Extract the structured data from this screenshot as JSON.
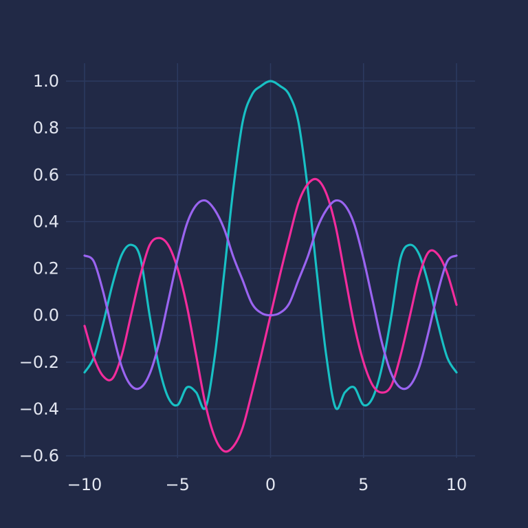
{
  "chart_data": {
    "type": "line",
    "title": "",
    "xlabel": "",
    "ylabel": "",
    "xlim": [
      -10,
      10
    ],
    "ylim": [
      -0.65,
      1.05
    ],
    "grid": true,
    "legend": "none",
    "background": "#212946",
    "grid_color": "#2c3a60",
    "tick_color": "#e3e6f0",
    "x_ticks": [
      {
        "value": -10,
        "label": "−10"
      },
      {
        "value": -5,
        "label": "−5"
      },
      {
        "value": 0,
        "label": "0"
      },
      {
        "value": 5,
        "label": "5"
      },
      {
        "value": 10,
        "label": "10"
      }
    ],
    "y_ticks": [
      {
        "value": 1.0,
        "label": "1.0"
      },
      {
        "value": 0.8,
        "label": "0.8"
      },
      {
        "value": 0.6,
        "label": "0.6"
      },
      {
        "value": 0.4,
        "label": "0.4"
      },
      {
        "value": 0.2,
        "label": "0.2"
      },
      {
        "value": 0.0,
        "label": "0.0"
      },
      {
        "value": -0.2,
        "label": "−0.2"
      },
      {
        "value": -0.4,
        "label": "−0.4"
      },
      {
        "value": -0.6,
        "label": "−0.6"
      }
    ],
    "series": [
      {
        "color": "#18c0c4",
        "x": [
          -10,
          -9.5,
          -9,
          -8.5,
          -8,
          -7.5,
          -7,
          -6.5,
          -6,
          -5.5,
          -5,
          -4.5,
          -4,
          -3.5,
          -3,
          -2.5,
          -2,
          -1.5,
          -1,
          -0.5,
          0,
          0.5,
          1,
          1.5,
          2,
          2.5,
          3,
          3.5,
          4,
          4.5,
          5,
          5.5,
          6,
          6.5,
          7,
          7.5,
          8,
          8.5,
          9,
          9.5,
          10
        ],
        "y": [
          -0.244,
          -0.18,
          -0.035,
          0.132,
          0.259,
          0.301,
          0.246,
          -0.001,
          -0.218,
          -0.351,
          -0.383,
          -0.308,
          -0.329,
          -0.395,
          -0.175,
          0.176,
          0.542,
          0.825,
          0.942,
          0.98,
          1.0,
          0.98,
          0.942,
          0.825,
          0.542,
          0.176,
          -0.175,
          -0.395,
          -0.329,
          -0.308,
          -0.383,
          -0.351,
          -0.218,
          -0.001,
          0.246,
          0.301,
          0.259,
          0.132,
          -0.035,
          -0.18,
          -0.244
        ]
      },
      {
        "color": "#f22c9c",
        "x": [
          -10,
          -9.5,
          -9,
          -8.5,
          -8,
          -7.5,
          -7,
          -6.5,
          -6,
          -5.5,
          -5,
          -4.5,
          -4,
          -3.5,
          -3,
          -2.5,
          -2,
          -1.5,
          -1,
          -0.5,
          0,
          0.5,
          1,
          1.5,
          2,
          2.5,
          3,
          3.5,
          4,
          4.5,
          5,
          5.5,
          6,
          6.5,
          7,
          7.5,
          8,
          8.5,
          9,
          9.5,
          10
        ],
        "y": [
          -0.045,
          -0.18,
          -0.26,
          -0.27,
          -0.17,
          0.0,
          0.17,
          0.3,
          0.33,
          0.3,
          0.2,
          0.04,
          -0.17,
          -0.38,
          -0.52,
          -0.58,
          -0.56,
          -0.48,
          -0.33,
          -0.17,
          0.0,
          0.17,
          0.33,
          0.48,
          0.56,
          0.58,
          0.52,
          0.38,
          0.17,
          -0.04,
          -0.2,
          -0.3,
          -0.33,
          -0.3,
          -0.17,
          0.0,
          0.17,
          0.27,
          0.26,
          0.18,
          0.045
        ]
      },
      {
        "color": "#9a64f0",
        "x": [
          -10,
          -9.5,
          -9,
          -8.5,
          -8,
          -7.5,
          -7,
          -6.5,
          -6,
          -5.5,
          -5,
          -4.5,
          -4,
          -3.5,
          -3,
          -2.5,
          -2,
          -1.5,
          -1,
          -0.5,
          0,
          0.5,
          1,
          1.5,
          2,
          2.5,
          3,
          3.5,
          4,
          4.5,
          5,
          5.5,
          6,
          6.5,
          7,
          7.5,
          8,
          8.5,
          9,
          9.5,
          10
        ],
        "y": [
          0.255,
          0.23,
          0.1,
          -0.07,
          -0.22,
          -0.3,
          -0.31,
          -0.25,
          -0.12,
          0.06,
          0.24,
          0.39,
          0.47,
          0.49,
          0.45,
          0.37,
          0.25,
          0.15,
          0.05,
          0.01,
          0.0,
          0.01,
          0.05,
          0.15,
          0.25,
          0.37,
          0.45,
          0.49,
          0.47,
          0.39,
          0.24,
          0.06,
          -0.12,
          -0.25,
          -0.31,
          -0.3,
          -0.22,
          -0.07,
          0.1,
          0.23,
          0.255
        ]
      }
    ]
  }
}
